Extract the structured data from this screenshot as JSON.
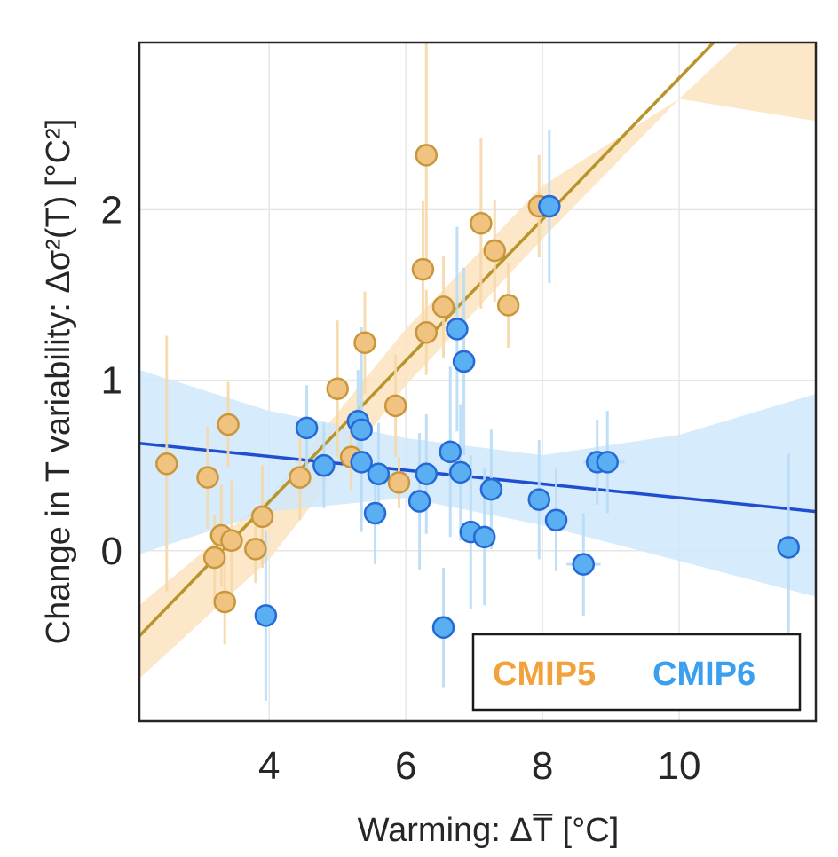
{
  "chart_data": {
    "type": "scatter",
    "title": "",
    "xlabel": "Warming: ΔT̅ [°C]",
    "ylabel": "Change in T variability: Δσ²(T)  [°C²]",
    "xlim": [
      2.1,
      12.0
    ],
    "ylim": [
      -1.0,
      2.98
    ],
    "xticks": [
      4,
      6,
      8,
      10
    ],
    "yticks": [
      0,
      1,
      2
    ],
    "xtick_labels": [
      "4",
      "6",
      "8",
      "10"
    ],
    "ytick_labels": [
      "0",
      "1",
      "2"
    ],
    "grid": true,
    "legend": {
      "placement": "bottom-right"
    },
    "series": [
      {
        "name": "CMIP5",
        "color": "#F2A23A",
        "marker_fill": "#F0C480",
        "marker_edge": "#C9963C",
        "errorbar_color": "#F5D8A8",
        "line_color": "#B8952B",
        "band_color": "#FBE3BF",
        "fit": {
          "x": [
            2.1,
            12.0
          ],
          "y": [
            -0.5,
            3.6
          ]
        },
        "band_upper": {
          "x": [
            2.1,
            4.0,
            6.0,
            8.0,
            10.0,
            12.0
          ],
          "y": [
            -0.32,
            0.32,
            1.3,
            2.14,
            2.65,
            2.52
          ]
        },
        "band_lower": {
          "x": [
            2.1,
            4.0,
            6.0,
            8.0,
            10.0,
            12.0
          ],
          "y": [
            -0.75,
            -0.05,
            0.97,
            1.83,
            2.65,
            3.4
          ]
        },
        "points": [
          {
            "x": 2.5,
            "y": 0.51,
            "yerr": 0.75,
            "xerr": 0.15
          },
          {
            "x": 3.1,
            "y": 0.43,
            "yerr": 0.3,
            "xerr": 0.15
          },
          {
            "x": 3.2,
            "y": -0.04,
            "yerr": 0.25,
            "xerr": 0.15
          },
          {
            "x": 3.3,
            "y": 0.09,
            "yerr": 0.3,
            "xerr": 0.15
          },
          {
            "x": 3.35,
            "y": -0.3,
            "yerr": 0.25,
            "xerr": 0.15
          },
          {
            "x": 3.4,
            "y": 0.74,
            "yerr": 0.25,
            "xerr": 0.15
          },
          {
            "x": 3.45,
            "y": 0.06,
            "yerr": 0.35,
            "xerr": 0.15
          },
          {
            "x": 3.8,
            "y": 0.01,
            "yerr": 0.2,
            "xerr": 0.15
          },
          {
            "x": 3.9,
            "y": 0.2,
            "yerr": 0.3,
            "xerr": 0.15
          },
          {
            "x": 4.45,
            "y": 0.43,
            "yerr": 0.25,
            "xerr": 0.15
          },
          {
            "x": 5.0,
            "y": 0.95,
            "yerr": 0.4,
            "xerr": 0.15
          },
          {
            "x": 5.2,
            "y": 0.55,
            "yerr": 0.2,
            "xerr": 0.15
          },
          {
            "x": 5.4,
            "y": 1.22,
            "yerr": 0.3,
            "xerr": 0.15
          },
          {
            "x": 5.85,
            "y": 0.85,
            "yerr": 0.3,
            "xerr": 0.15
          },
          {
            "x": 5.9,
            "y": 0.4,
            "yerr": 0.15,
            "xerr": 0.15
          },
          {
            "x": 6.25,
            "y": 1.65,
            "yerr": 0.4,
            "xerr": 0.15
          },
          {
            "x": 6.3,
            "y": 2.32,
            "yerr": 0.7,
            "xerr": 0.15
          },
          {
            "x": 6.3,
            "y": 1.28,
            "yerr": 0.25,
            "xerr": 0.15
          },
          {
            "x": 6.55,
            "y": 1.43,
            "yerr": 0.3,
            "xerr": 0.15
          },
          {
            "x": 7.1,
            "y": 1.92,
            "yerr": 0.5,
            "xerr": 0.15
          },
          {
            "x": 7.3,
            "y": 1.76,
            "yerr": 0.3,
            "xerr": 0.15
          },
          {
            "x": 7.5,
            "y": 1.44,
            "yerr": 0.25,
            "xerr": 0.15
          },
          {
            "x": 7.95,
            "y": 2.02,
            "yerr": 0.3,
            "xerr": 0.15
          }
        ]
      },
      {
        "name": "CMIP6",
        "color": "#3B9FEF",
        "marker_fill": "#5AAEF2",
        "marker_edge": "#2469D6",
        "errorbar_color": "#B8DCF7",
        "line_color": "#1F4FD0",
        "band_color": "#CFE8FA",
        "fit": {
          "x": [
            2.1,
            12.0
          ],
          "y": [
            0.63,
            0.23
          ]
        },
        "band_upper": {
          "x": [
            2.1,
            4.0,
            6.0,
            8.0,
            10.0,
            12.0
          ],
          "y": [
            1.06,
            0.82,
            0.66,
            0.56,
            0.68,
            0.92
          ]
        },
        "band_lower": {
          "x": [
            2.1,
            4.0,
            6.0,
            8.0,
            10.0,
            12.0
          ],
          "y": [
            -0.02,
            0.23,
            0.31,
            0.15,
            -0.06,
            -0.27
          ]
        },
        "points": [
          {
            "x": 3.95,
            "y": -0.38,
            "yerr": 0.5,
            "xerr": 0.15
          },
          {
            "x": 4.55,
            "y": 0.72,
            "yerr": 0.25,
            "xerr": 0.15
          },
          {
            "x": 4.8,
            "y": 0.5,
            "yerr": 0.25,
            "xerr": 0.15
          },
          {
            "x": 5.3,
            "y": 0.76,
            "yerr": 0.3,
            "xerr": 0.15
          },
          {
            "x": 5.35,
            "y": 0.71,
            "yerr": 0.6,
            "xerr": 0.15
          },
          {
            "x": 5.35,
            "y": 0.52,
            "yerr": 0.35,
            "xerr": 0.15
          },
          {
            "x": 5.55,
            "y": 0.22,
            "yerr": 0.3,
            "xerr": 0.15
          },
          {
            "x": 5.6,
            "y": 0.45,
            "yerr": 0.3,
            "xerr": 0.15
          },
          {
            "x": 6.2,
            "y": 0.29,
            "yerr": 0.4,
            "xerr": 0.15
          },
          {
            "x": 6.3,
            "y": 0.45,
            "yerr": 0.35,
            "xerr": 0.15
          },
          {
            "x": 6.55,
            "y": -0.45,
            "yerr": 0.35,
            "xerr": 0.15
          },
          {
            "x": 6.65,
            "y": 0.58,
            "yerr": 0.5,
            "xerr": 0.15
          },
          {
            "x": 6.75,
            "y": 1.3,
            "yerr": 0.6,
            "xerr": 0.15
          },
          {
            "x": 6.8,
            "y": 0.46,
            "yerr": 0.4,
            "xerr": 0.15
          },
          {
            "x": 6.85,
            "y": 1.11,
            "yerr": 0.55,
            "xerr": 0.15
          },
          {
            "x": 6.95,
            "y": 0.11,
            "yerr": 0.45,
            "xerr": 0.15
          },
          {
            "x": 7.15,
            "y": 0.08,
            "yerr": 0.4,
            "xerr": 0.15
          },
          {
            "x": 7.25,
            "y": 0.36,
            "yerr": 0.35,
            "xerr": 0.15
          },
          {
            "x": 7.95,
            "y": 0.3,
            "yerr": 0.35,
            "xerr": 0.15
          },
          {
            "x": 8.1,
            "y": 2.02,
            "yerr": 0.45,
            "xerr": 0.15
          },
          {
            "x": 8.2,
            "y": 0.18,
            "yerr": 0.3,
            "xerr": 0.15
          },
          {
            "x": 8.6,
            "y": -0.08,
            "yerr": 0.3,
            "xerr": 0.25
          },
          {
            "x": 8.8,
            "y": 0.52,
            "yerr": 0.25,
            "xerr": 0.2
          },
          {
            "x": 8.95,
            "y": 0.52,
            "yerr": 0.3,
            "xerr": 0.25
          },
          {
            "x": 11.6,
            "y": 0.02,
            "yerr": 0.55,
            "xerr": 0.15
          }
        ]
      }
    ]
  }
}
